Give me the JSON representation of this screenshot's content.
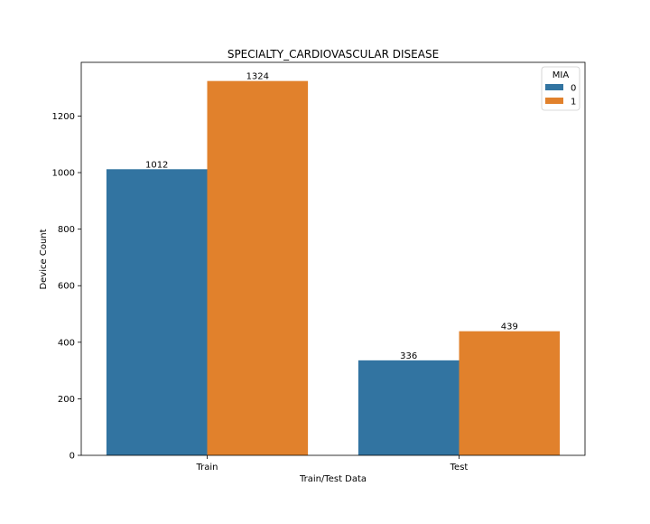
{
  "chart_data": {
    "type": "bar",
    "title": "SPECIALTY_CARDIOVASCULAR DISEASE",
    "xlabel": "Train/Test Data",
    "ylabel": "Device Count",
    "categories": [
      "Train",
      "Test"
    ],
    "series": [
      {
        "name": "0",
        "values": [
          1012,
          336
        ],
        "color": "#3274a1"
      },
      {
        "name": "1",
        "values": [
          1324,
          439
        ],
        "color": "#e1812c"
      }
    ],
    "ylim": [
      0,
      1390
    ],
    "yticks": [
      0,
      200,
      400,
      600,
      800,
      1000,
      1200
    ],
    "data_labels": true,
    "grid": false,
    "legend": {
      "title": "MIA",
      "placement": "top-right"
    }
  }
}
